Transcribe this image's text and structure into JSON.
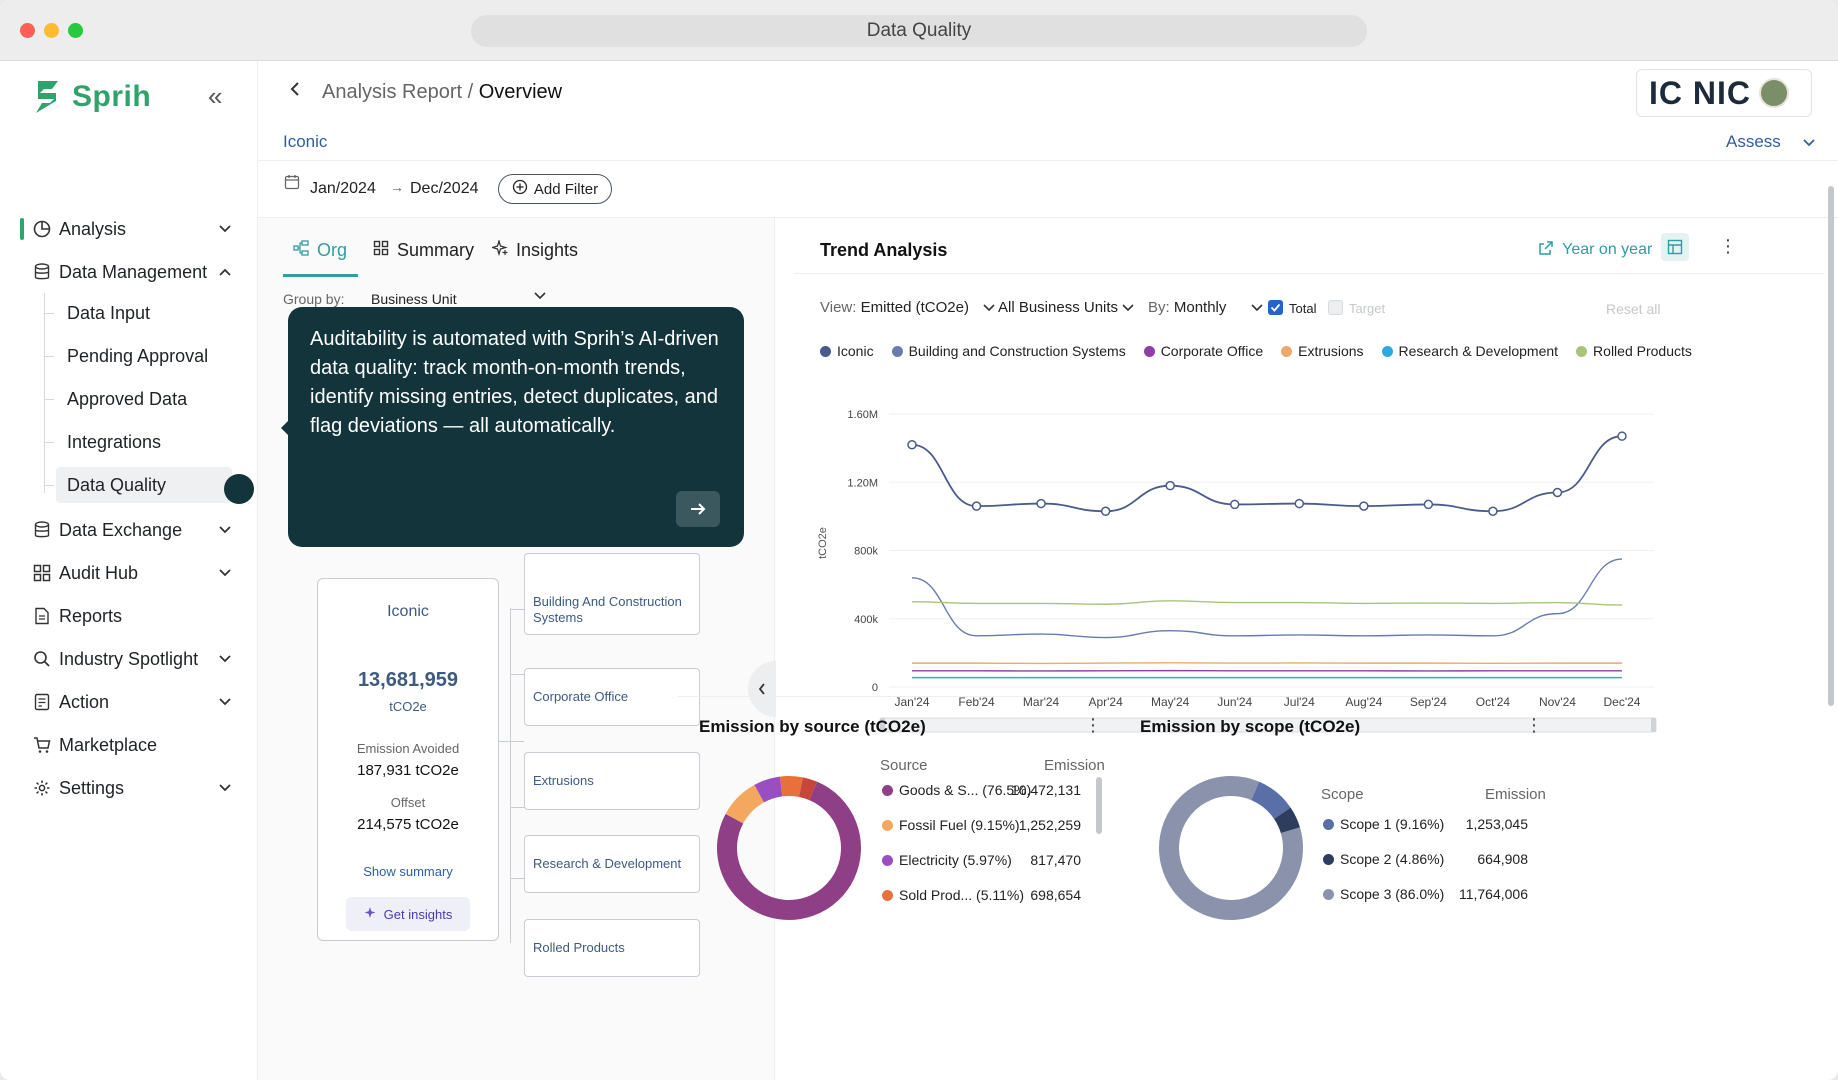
{
  "window": {
    "title": "Data Quality"
  },
  "sidebar": {
    "brand": "Sprih",
    "items": [
      {
        "label": "Analysis",
        "icon": "pie-chart-icon",
        "expandable": true
      },
      {
        "label": "Data Management",
        "icon": "database-icon",
        "expandable": true,
        "expanded": true
      },
      {
        "label": "Data Exchange",
        "icon": "database-icon",
        "expandable": true
      },
      {
        "label": "Audit Hub",
        "icon": "grid-icon",
        "expandable": true
      },
      {
        "label": "Reports",
        "icon": "report-icon",
        "expandable": false
      },
      {
        "label": "Industry Spotlight",
        "icon": "magnifier-icon",
        "expandable": true
      },
      {
        "label": "Action",
        "icon": "action-icon",
        "expandable": true
      },
      {
        "label": "Marketplace",
        "icon": "cart-icon",
        "expandable": false
      },
      {
        "label": "Settings",
        "icon": "gear-icon",
        "expandable": true
      }
    ],
    "sub_items": [
      "Data Input",
      "Pending Approval",
      "Approved Data",
      "Integrations",
      "Data Quality"
    ]
  },
  "header": {
    "crumb_parent": "Analysis Report",
    "crumb_sep": " / ",
    "crumb_current": "Overview",
    "brand_logo": "IC NIC",
    "org": "Iconic",
    "assess": "Assess"
  },
  "filters": {
    "from": "Jan/2024",
    "to": "Dec/2024",
    "add_filter": "Add Filter"
  },
  "left": {
    "tabs": [
      "Org",
      "Summary",
      "Insights"
    ],
    "group_by_label": "Group by:",
    "group_by_value": "Business Unit",
    "org_card": {
      "name": "Iconic",
      "total": "13,681,959",
      "unit": "tCO2e",
      "avoided_label": "Emission Avoided",
      "avoided_value": "187,931 tCO2e",
      "offset_label": "Offset",
      "offset_value": "214,575 tCO2e",
      "show_summary": "Show summary",
      "get_insights": "Get insights"
    },
    "children": [
      "Building And Construction Systems",
      "Corporate Office",
      "Extrusions",
      "Research & Development",
      "Rolled Products"
    ]
  },
  "tooltip": {
    "text": "Auditability is automated with Sprih’s AI-driven data quality: track month-on-month trends, identify missing entries, detect duplicates, and flag deviations — all automatically."
  },
  "trend": {
    "title": "Trend Analysis",
    "year_on_year": "Year on year",
    "view_label": "View:",
    "view_value": "Emitted (tCO2e)",
    "units": "All Business Units",
    "by_label": "By:",
    "by_value": "Monthly",
    "total": "Total",
    "target": "Target",
    "reset": "Reset all"
  },
  "chart_data": {
    "type": "line",
    "ylabel": "tCO2e",
    "ylim": [
      0,
      1600000
    ],
    "y_ticks": [
      "1.60M",
      "1.20M",
      "800k",
      "400k",
      "0"
    ],
    "y_tick_values": [
      1600000,
      1200000,
      800000,
      400000,
      0
    ],
    "x": [
      "Jan'24",
      "Feb'24",
      "Mar'24",
      "Apr'24",
      "May'24",
      "Jun'24",
      "Jul'24",
      "Aug'24",
      "Sep'24",
      "Oct'24",
      "Nov'24",
      "Dec'24"
    ],
    "series": [
      {
        "name": "Iconic",
        "color": "#4a5a8c",
        "markers": true,
        "values": [
          1420000,
          1060000,
          1075000,
          1030000,
          1180000,
          1070000,
          1075000,
          1060000,
          1070000,
          1030000,
          1140000,
          1470000
        ]
      },
      {
        "name": "Building and Construction Systems",
        "color": "#6a7bb0",
        "markers": false,
        "values": [
          640000,
          300000,
          310000,
          290000,
          330000,
          300000,
          305000,
          300000,
          305000,
          300000,
          430000,
          750000
        ]
      },
      {
        "name": "Corporate Office",
        "color": "#8e3fa4",
        "markers": false,
        "values": [
          95000,
          95000,
          94000,
          95000,
          96000,
          95000,
          95000,
          95000,
          94000,
          95000,
          95000,
          95000
        ]
      },
      {
        "name": "Extrusions",
        "color": "#f0a868",
        "markers": false,
        "values": [
          140000,
          140000,
          138000,
          140000,
          142000,
          140000,
          141000,
          140000,
          140000,
          139000,
          140000,
          140000
        ]
      },
      {
        "name": "Research & Development",
        "color": "#2ea8e0",
        "markers": false,
        "values": [
          55000,
          55000,
          55000,
          55000,
          55000,
          55000,
          55000,
          55000,
          55000,
          55000,
          55000,
          55000
        ]
      },
      {
        "name": "Rolled Products",
        "color": "#a8c47a",
        "markers": false,
        "values": [
          500000,
          490000,
          490000,
          485000,
          505000,
          495000,
          495000,
          490000,
          492000,
          490000,
          495000,
          480000
        ]
      }
    ]
  },
  "by_source": {
    "title": "Emission by source (tCO2e)",
    "col_source": "Source",
    "col_emission": "Emission",
    "rows": [
      {
        "label": "Goods & S...",
        "pct": "(76.5%)",
        "value": "10,472,131",
        "color": "#8e3f86"
      },
      {
        "label": "Fossil Fuel",
        "pct": "(9.15%)",
        "value": "1,252,259",
        "color": "#f4a85f"
      },
      {
        "label": "Electricity",
        "pct": "(5.97%)",
        "value": "817,470",
        "color": "#9a4fc0"
      },
      {
        "label": "Sold Prod...",
        "pct": "(5.11%)",
        "value": "698,654",
        "color": "#e8703a"
      }
    ]
  },
  "by_scope": {
    "title": "Emission by scope (tCO2e)",
    "col_scope": "Scope",
    "col_emission": "Emission",
    "rows": [
      {
        "label": "Scope 1",
        "pct": "(9.16%)",
        "value": "1,253,045",
        "color": "#5a6fa8"
      },
      {
        "label": "Scope 2",
        "pct": "(4.86%)",
        "value": "664,908",
        "color": "#2e3c5e"
      },
      {
        "label": "Scope 3",
        "pct": "(86.0%)",
        "value": "11,764,006",
        "color": "#8a93ab"
      }
    ]
  }
}
